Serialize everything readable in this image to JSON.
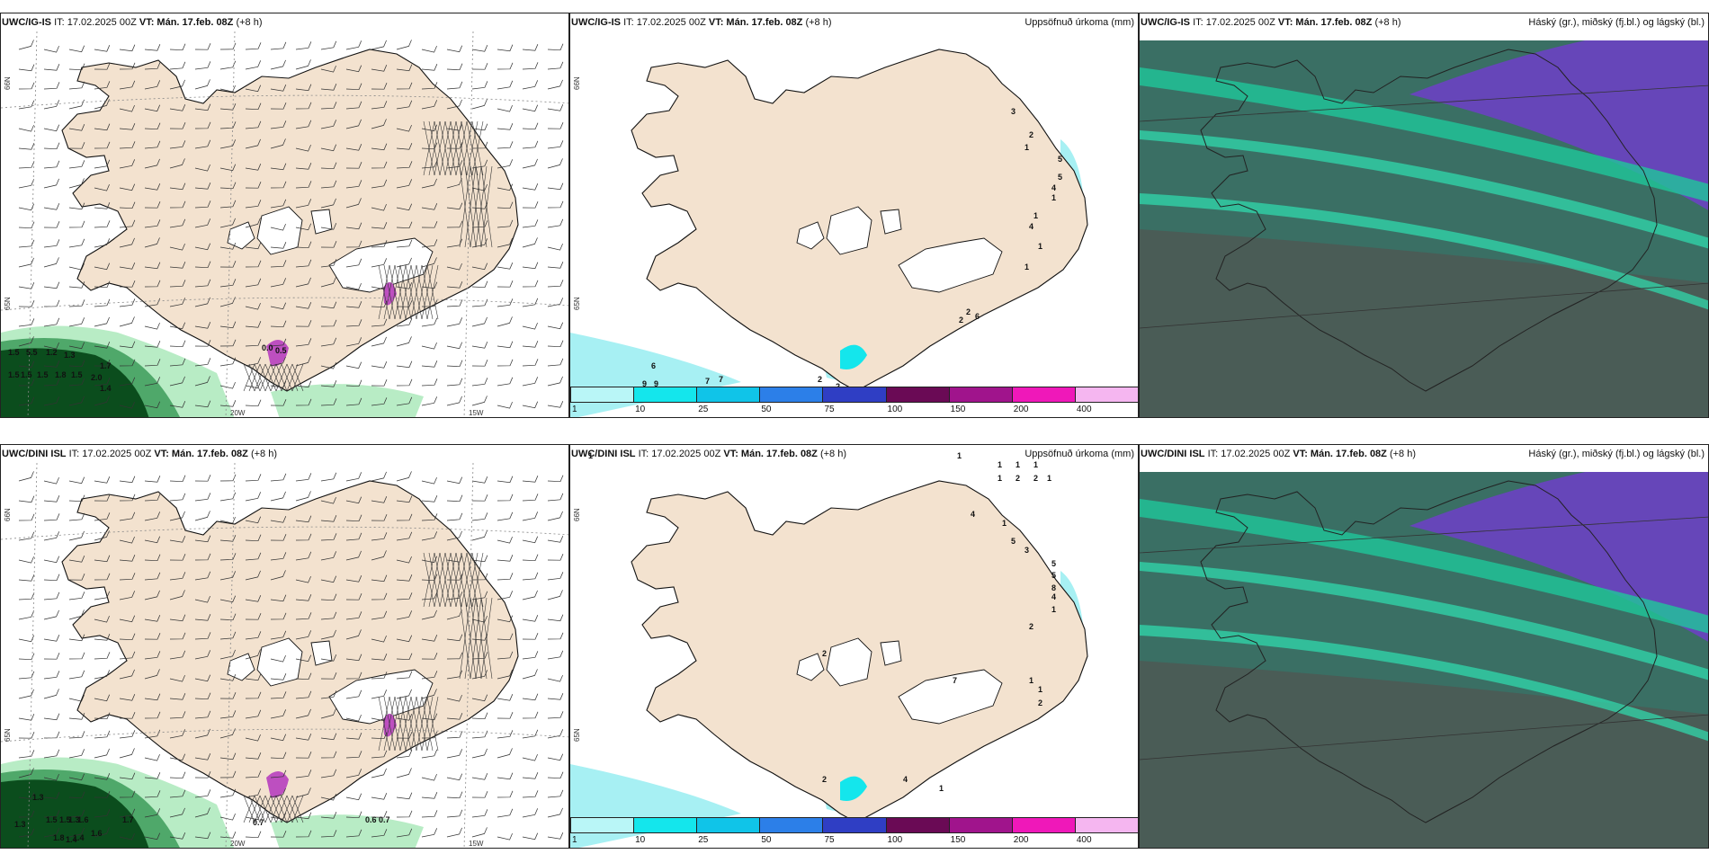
{
  "panels": [
    {
      "id": "r1c1",
      "model": "UWC/IG-IS",
      "it": "IT: 17.02.2025 00Z",
      "vt_label": "VT:",
      "vt": "Mán. 17.feb. 08Z",
      "lead": "(+8 h)",
      "right": "",
      "lat_labels": [
        "66N",
        "65N"
      ],
      "lon_labels": [
        "20W",
        "15W"
      ],
      "values": [
        "1.5",
        "5.5",
        "1.2",
        "1.3",
        "1.5",
        "1.5",
        "1.5",
        "1.8",
        "1.5",
        "2.0",
        "1.7",
        "1.4",
        "0.0",
        "0.5"
      ]
    },
    {
      "id": "r1c2",
      "model": "UWC/IG-IS",
      "it": "IT: 17.02.2025 00Z",
      "vt_label": "VT:",
      "vt": "Mán. 17.feb. 08Z",
      "lead": "(+8 h)",
      "right": "Uppsöfnuð úrkoma (mm)",
      "lat_labels": [
        "66N",
        "65N"
      ],
      "values": [
        "3",
        "2",
        "1",
        "5",
        "5",
        "4",
        "1",
        "1",
        "4",
        "1",
        "1",
        "6",
        "2",
        "2",
        "6",
        "9",
        "9",
        "7",
        "7",
        "2",
        "2"
      ]
    },
    {
      "id": "r1c3",
      "model": "UWC/IG-IS",
      "it": "IT: 17.02.2025 00Z",
      "vt_label": "VT:",
      "vt": "Mán. 17.feb. 08Z",
      "lead": "(+8 h)",
      "right": "Háský (gr.), miðský (fj.bl.) og lágský (bl.)"
    },
    {
      "id": "r2c1",
      "model": "UWC/DINI ISL",
      "it": "IT: 17.02.2025 00Z",
      "vt_label": "VT:",
      "vt": "Mán. 17.feb. 08Z",
      "lead": "(+8 h)",
      "right": "",
      "lat_labels": [
        "66N",
        "65N"
      ],
      "lon_labels": [
        "20W",
        "15W"
      ],
      "values": [
        "1.3",
        "1.5",
        "1.5",
        "1.3",
        "1.6",
        "1.7",
        "1.3",
        "1.8",
        "1.4",
        "1.6",
        "0.7",
        "0.6",
        "0.7",
        "1.4"
      ]
    },
    {
      "id": "r2c2",
      "model": "UWC/DINI ISL",
      "it": "IT: 17.02.2025 00Z",
      "vt_label": "VT:",
      "vt": "Mán. 17.feb. 08Z",
      "lead": "(+8 h)",
      "right": "Uppsöfnuð úrkoma (mm)",
      "lat_labels": [
        "66N",
        "65N"
      ],
      "values": [
        "1",
        "1",
        "1",
        "1",
        "1",
        "1",
        "2",
        "2",
        "1",
        "4",
        "1",
        "5",
        "3",
        "5",
        "5",
        "8",
        "4",
        "1",
        "2",
        "2",
        "7",
        "1",
        "1",
        "2",
        "4",
        "1",
        "2"
      ]
    },
    {
      "id": "r2c3",
      "model": "UWC/DINI ISL",
      "it": "IT: 17.02.2025 00Z",
      "vt_label": "VT:",
      "vt": "Mán. 17.feb. 08Z",
      "lead": "(+8 h)",
      "right": "Háský (gr.), miðský (fj.bl.) og lágský (bl.)"
    }
  ],
  "colorbar": {
    "ticks": [
      "1",
      "10",
      "25",
      "50",
      "75",
      "100",
      "150",
      "200",
      "400"
    ],
    "colors": [
      "#b9f6f7",
      "#14e6ec",
      "#10c4e8",
      "#2c7fe8",
      "#2f3ec4",
      "#6a0a55",
      "#a0148c",
      "#ef18b9",
      "#f5b6f0"
    ]
  },
  "map_colors": {
    "land": "#f3e2cf",
    "ice": "#ffffff",
    "coast": "#111111",
    "sea": "#ffffff",
    "precip_light": "#a7f0f3",
    "precip_heavy": "#bd4fc0",
    "fog_dark": "#0b4d1d",
    "fog_mid": "#4fa86a",
    "fog_light": "#b8ecc5",
    "cloud_high": "#1f8f6f",
    "cloud_mid": "#6f3fc8",
    "cloud_low": "#3c5a95"
  }
}
